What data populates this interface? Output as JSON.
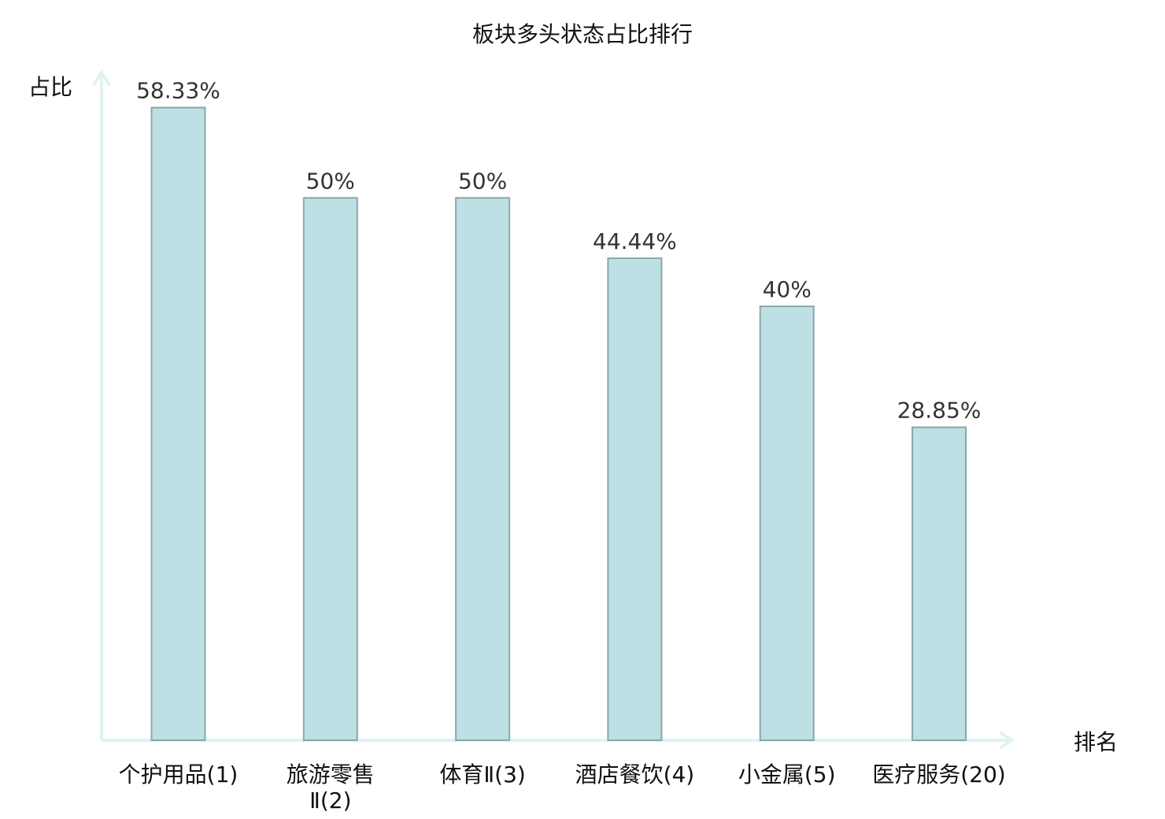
{
  "chart_data": {
    "type": "bar",
    "title": "板块多头状态占比排行",
    "ylabel": "占比",
    "xlabel": "排名",
    "categories": [
      [
        "个护用品(1)"
      ],
      [
        "旅游零售",
        "Ⅱ(2)"
      ],
      [
        "体育Ⅱ(3)"
      ],
      [
        "酒店餐饮(4)"
      ],
      [
        "小金属(5)"
      ],
      [
        "医疗服务(20)"
      ]
    ],
    "values": [
      58.33,
      50,
      50,
      44.44,
      40,
      28.85
    ],
    "value_labels": [
      "58.33%",
      "50%",
      "50%",
      "44.44%",
      "40%",
      "28.85%"
    ],
    "highlight_index": 5,
    "ylim": [
      0,
      62
    ],
    "grid": false,
    "colors": {
      "bar_fill": "#bce0e3",
      "bar_stroke": "#8aa8ab",
      "axis": "#e1f3f1",
      "highlight_text": "#e52222",
      "text": "#111111",
      "value_text": "#333333"
    }
  }
}
